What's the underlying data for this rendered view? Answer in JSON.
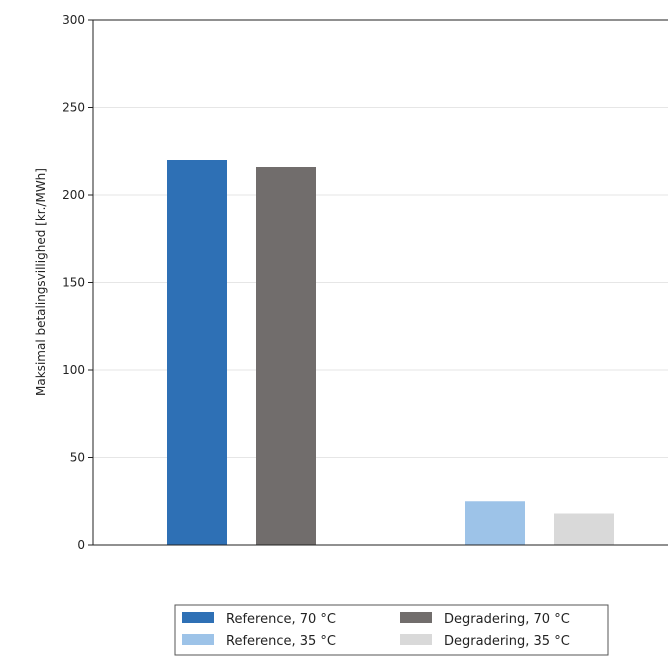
{
  "chart_data": {
    "type": "bar",
    "ylabel": "Maksimal betalingsvillighed [kr./MWh]",
    "ylim": [
      0,
      300
    ],
    "yticks": [
      0,
      50,
      100,
      150,
      200,
      250,
      300
    ],
    "grid": true,
    "legend_position": "bottom",
    "groups": 2,
    "series": [
      {
        "name": "Reference, 70 °C",
        "color": "#2e70b5",
        "values": [
          220,
          null
        ]
      },
      {
        "name": "Degradering, 70 °C",
        "color": "#716d6c",
        "values": [
          216,
          null
        ]
      },
      {
        "name": "Reference, 35 °C",
        "color": "#9dc3e8",
        "values": [
          null,
          25
        ]
      },
      {
        "name": "Degradering, 35 °C",
        "color": "#d9d9d9",
        "values": [
          null,
          18
        ]
      }
    ]
  }
}
